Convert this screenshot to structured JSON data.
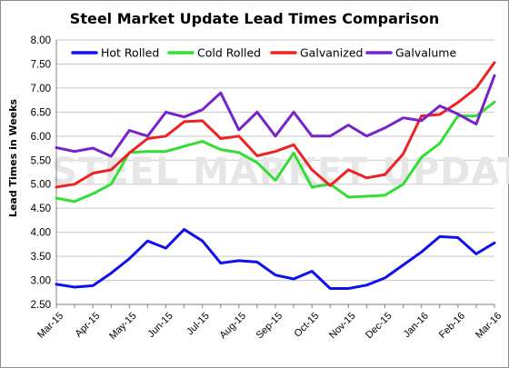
{
  "chart_data": {
    "type": "line",
    "title": "Steel Market Update Lead Times Comparison",
    "xlabel": "",
    "ylabel": "Lead Times in Weeks",
    "ylim": [
      2.5,
      8.0
    ],
    "yticks": [
      "2.50",
      "3.00",
      "3.50",
      "4.00",
      "4.50",
      "5.00",
      "5.50",
      "6.00",
      "6.50",
      "7.00",
      "7.50",
      "8.00"
    ],
    "xtick_labels": [
      "Mar-15",
      "Apr-15",
      "May-15",
      "Jun-15",
      "Jul-15",
      "Aug-15",
      "Sep-15",
      "Oct-15",
      "Nov-15",
      "Dec-15",
      "Jan-16",
      "Feb-16",
      "Mar-16"
    ],
    "grid": true,
    "legend": "top",
    "series": [
      {
        "name": "Hot Rolled",
        "color": "#1010ee",
        "values": [
          2.92,
          2.86,
          2.89,
          3.15,
          3.45,
          3.82,
          3.67,
          4.06,
          3.82,
          3.36,
          3.41,
          3.38,
          3.11,
          3.03,
          3.19,
          2.83,
          2.83,
          2.9,
          3.05,
          3.32,
          3.59,
          3.91,
          3.89,
          3.55,
          3.78
        ]
      },
      {
        "name": "Cold Rolled",
        "color": "#33dd33",
        "values": [
          4.71,
          4.64,
          4.8,
          5.0,
          5.66,
          5.68,
          5.68,
          5.79,
          5.89,
          5.72,
          5.66,
          5.45,
          5.08,
          5.65,
          4.94,
          5.0,
          4.73,
          4.75,
          4.77,
          5.0,
          5.56,
          5.85,
          6.42,
          6.42,
          6.71
        ]
      },
      {
        "name": "Galvanized",
        "color": "#ee2222",
        "values": [
          4.94,
          5.0,
          5.23,
          5.3,
          5.65,
          5.95,
          6.0,
          6.3,
          6.32,
          5.95,
          6.0,
          5.59,
          5.68,
          5.82,
          5.3,
          4.97,
          5.3,
          5.13,
          5.2,
          5.63,
          6.42,
          6.45,
          6.7,
          7.0,
          7.53
        ]
      },
      {
        "name": "Galvalume",
        "color": "#7722cc",
        "values": [
          5.76,
          5.68,
          5.75,
          5.58,
          6.12,
          6.0,
          6.5,
          6.4,
          6.55,
          6.9,
          6.13,
          6.5,
          6.0,
          6.5,
          6.0,
          6.0,
          6.23,
          6.0,
          6.17,
          6.38,
          6.32,
          6.63,
          6.46,
          6.25,
          7.26
        ]
      }
    ]
  },
  "watermark": {
    "text": "STEEL MARKET UPDATE"
  }
}
